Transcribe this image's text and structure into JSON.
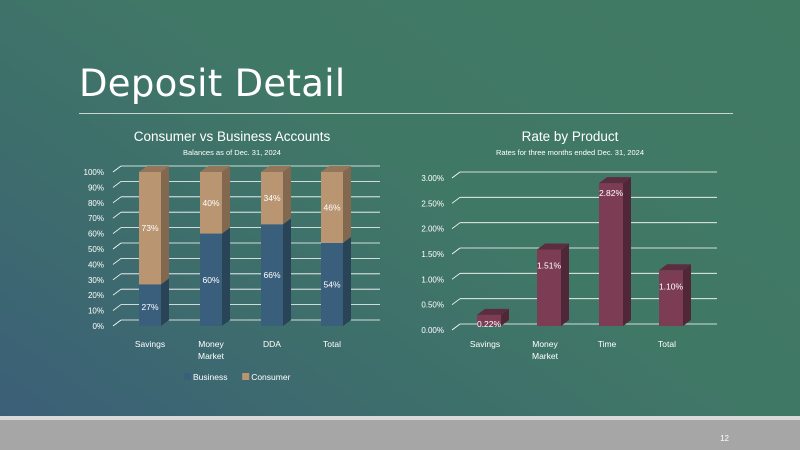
{
  "slide": {
    "title": "Deposit Detail",
    "page_number": "12"
  },
  "colors": {
    "business": "#3a5f7c",
    "consumer": "#b99571",
    "rate": "#7b3c54"
  },
  "chart_data": [
    {
      "type": "bar",
      "stacked": true,
      "title": "Consumer vs Business Accounts",
      "subtitle": "Balances as of Dec. 31, 2024",
      "categories": [
        [
          "Savings"
        ],
        [
          "Money",
          "Market"
        ],
        [
          "DDA"
        ],
        [
          "Total"
        ]
      ],
      "series": [
        {
          "name": "Business",
          "values": [
            27,
            60,
            66,
            54
          ],
          "labels": [
            "27%",
            "60%",
            "66%",
            "54%"
          ]
        },
        {
          "name": "Consumer",
          "values": [
            73,
            40,
            34,
            46
          ],
          "labels": [
            "73%",
            "40%",
            "34%",
            "46%"
          ]
        }
      ],
      "yticks": [
        "0%",
        "10%",
        "20%",
        "30%",
        "40%",
        "50%",
        "60%",
        "70%",
        "80%",
        "90%",
        "100%"
      ],
      "ylim": [
        0,
        100
      ],
      "legend": "bottom"
    },
    {
      "type": "bar",
      "title": "Rate by Product",
      "subtitle": "Rates for three months ended Dec. 31, 2024",
      "categories": [
        [
          "Savings"
        ],
        [
          "Money",
          "Market"
        ],
        [
          "Time"
        ],
        [
          "Total"
        ]
      ],
      "series": [
        {
          "name": "Rate",
          "values": [
            0.22,
            1.51,
            2.82,
            1.1
          ],
          "labels": [
            "0.22%",
            "1.51%",
            "2.82%",
            "1.10%"
          ]
        }
      ],
      "yticks": [
        "0.00%",
        "0.50%",
        "1.00%",
        "1.50%",
        "2.00%",
        "2.50%",
        "3.00%"
      ],
      "ylim": [
        0,
        3
      ],
      "legend": "none"
    }
  ]
}
